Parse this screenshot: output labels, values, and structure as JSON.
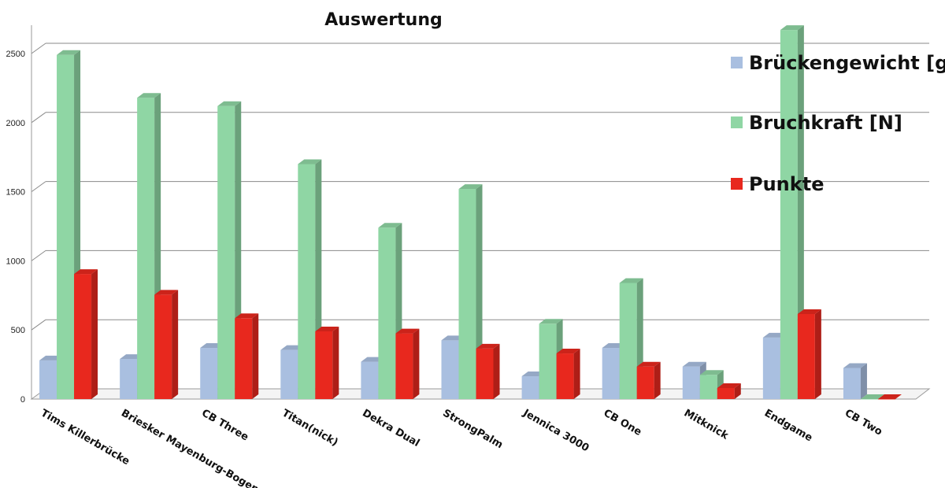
{
  "chart_data": {
    "type": "bar",
    "title": "Auswertung",
    "categories": [
      "Tims Killerbrücke",
      "Briesker Mayenburg-Bogen",
      "CB Three",
      "Titan(nick)",
      "Dekra Dual",
      "StrongPalm",
      "Jennica 3000",
      "CB One",
      "Mitknick",
      "Endgame",
      "CB Two"
    ],
    "series": [
      {
        "name": "Brückengewicht [g]",
        "color": "#a9bfe0",
        "values": [
          280,
          290,
          370,
          355,
          270,
          425,
          165,
          370,
          235,
          445,
          225
        ]
      },
      {
        "name": "Bruchkraft [N]",
        "color": "#8fd6a4",
        "values": [
          2490,
          2180,
          2120,
          1700,
          1240,
          1520,
          545,
          840,
          175,
          2670,
          0
        ]
      },
      {
        "name": "Punkte",
        "color": "#e8281e",
        "values": [
          905,
          755,
          585,
          490,
          475,
          365,
          330,
          235,
          80,
          615,
          0
        ]
      }
    ],
    "yticks": [
      0,
      500,
      1000,
      1500,
      2000,
      2500
    ],
    "ylim": [
      0,
      2700
    ],
    "xlabel": "",
    "ylabel": "",
    "grid": true,
    "legend_position": "right"
  }
}
